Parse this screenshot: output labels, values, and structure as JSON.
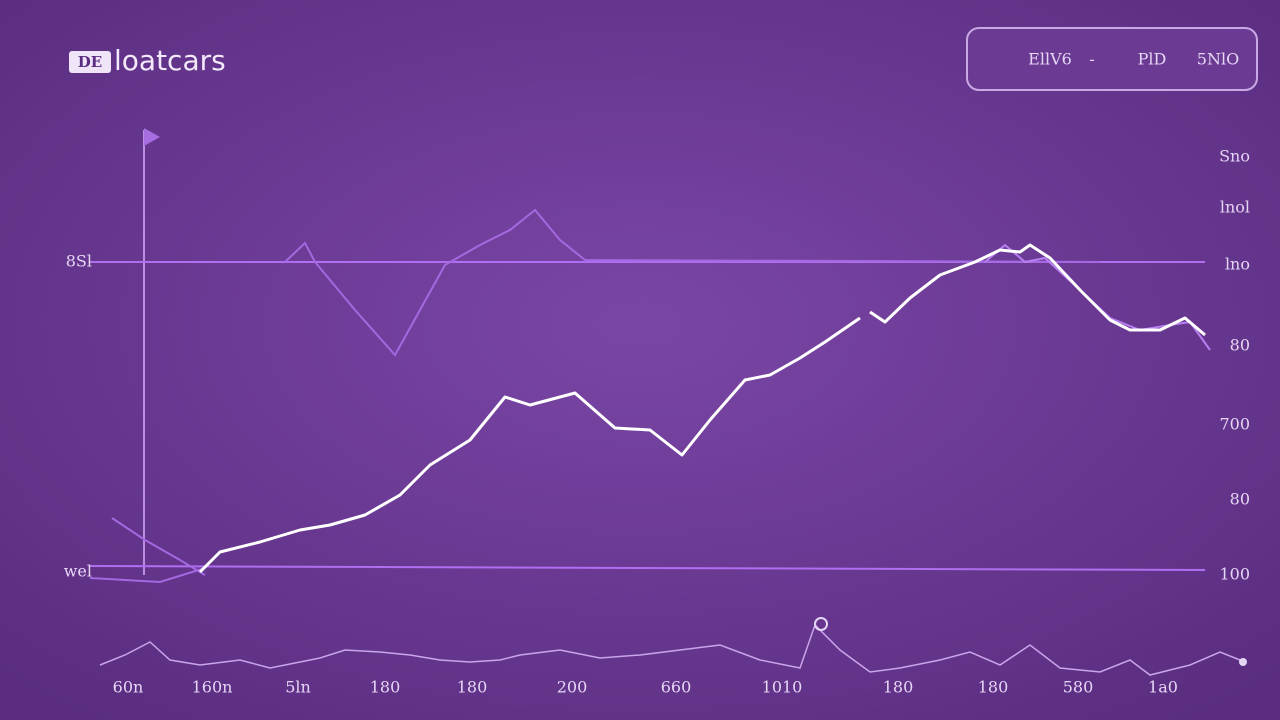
{
  "header": {
    "logo_icon": "DE",
    "brand": "loatcars",
    "button": [
      "EllV6",
      "-",
      "PlD",
      "5NlO"
    ]
  },
  "left_labels": [
    "8Sl",
    "wel"
  ],
  "right_labels": [
    "Sno",
    "lnol",
    "lno",
    "80",
    "700",
    "80",
    "100"
  ],
  "bottom_labels": [
    "60n",
    "160n",
    "5ln",
    "180",
    "180",
    "200",
    "660",
    "1010",
    "180",
    "180",
    "580",
    "1a0"
  ]
}
